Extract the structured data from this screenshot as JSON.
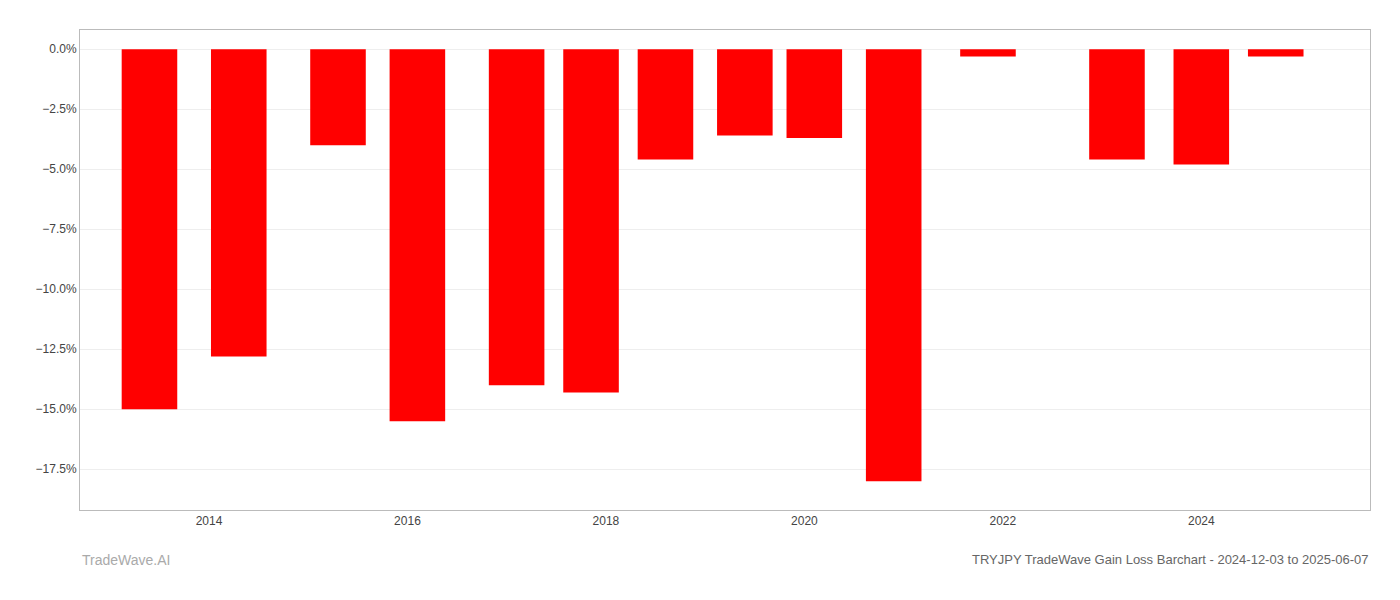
{
  "chart_data": {
    "type": "bar",
    "title": "TRYJPY TradeWave Gain Loss Barchart - 2024-12-03 to 2025-06-07",
    "annotations": [
      "TradeWave.AI"
    ],
    "x": [
      2013.4,
      2014.3,
      2015.3,
      2016.1,
      2017.1,
      2017.85,
      2018.6,
      2019.4,
      2020.1,
      2020.9,
      2021.85,
      2023.15,
      2024.0,
      2024.75
    ],
    "values": [
      -15.0,
      -12.8,
      -4.0,
      -15.5,
      -14.0,
      -14.3,
      -4.6,
      -3.6,
      -3.7,
      -18.0,
      -0.3,
      -4.6,
      -4.8,
      -0.3
    ],
    "color": "#ff0000",
    "xlim": [
      2012.7,
      2025.7
    ],
    "xticks": [
      2014,
      2016,
      2018,
      2020,
      2022,
      2024
    ],
    "ylim": [
      -19.2,
      0.8
    ],
    "yticks": [
      {
        "value": 0.0,
        "label": "0.0%"
      },
      {
        "value": -2.5,
        "label": "−2.5%"
      },
      {
        "value": -5.0,
        "label": "−5.0%"
      },
      {
        "value": -7.5,
        "label": "−7.5%"
      },
      {
        "value": -10.0,
        "label": "−10.0%"
      },
      {
        "value": -12.5,
        "label": "−12.5%"
      },
      {
        "value": -15.0,
        "label": "−15.0%"
      },
      {
        "value": -17.5,
        "label": "−17.5%"
      }
    ],
    "grid": true
  }
}
